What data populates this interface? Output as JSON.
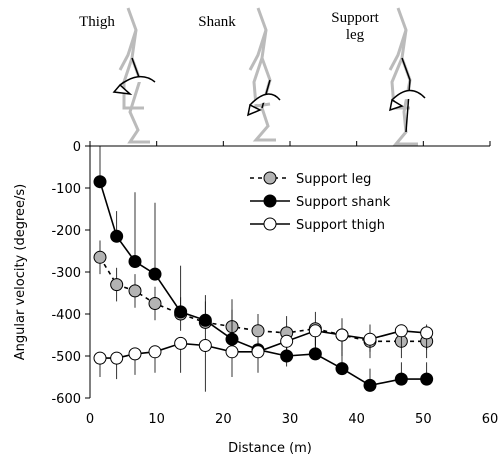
{
  "chart_data": {
    "type": "line",
    "panel_labels": [
      "Thigh",
      "Shank",
      "Support leg"
    ],
    "x_label": "Distance (m)",
    "y_label": "Angular velocity (degree/s)",
    "xlim": [
      0,
      60
    ],
    "xticks": [
      0,
      10,
      20,
      30,
      40,
      50,
      60
    ],
    "ylim": [
      -600,
      0
    ],
    "yticks": [
      0,
      -100,
      -200,
      -300,
      -400,
      -500,
      -600
    ],
    "x": [
      1.5,
      4,
      6.75,
      9.75,
      13.6,
      17.3,
      21.3,
      25.2,
      29.5,
      33.8,
      37.8,
      42,
      46.7,
      50.5
    ],
    "legend": "upper right",
    "series": [
      {
        "name": "Support leg",
        "color": "#b3b3b3",
        "dash": true,
        "error_direction": "both",
        "values": [
          -265,
          -330,
          -345,
          -375,
          -400,
          -420,
          -430,
          -440,
          -445,
          -435,
          -450,
          -465,
          -465,
          -465
        ],
        "errors": [
          40,
          40,
          40,
          40,
          40,
          50,
          40,
          40,
          40,
          40,
          40,
          40,
          40,
          40
        ]
      },
      {
        "name": "Support shank",
        "color": "#000000",
        "dash": false,
        "error_direction": "up",
        "values": [
          -85,
          -215,
          -275,
          -305,
          -395,
          -415,
          -460,
          -485,
          -500,
          -495,
          -530,
          -570,
          -555,
          -555
        ],
        "errors": [
          85,
          60,
          165,
          170,
          110,
          60,
          95,
          20,
          40,
          40,
          40,
          40,
          40,
          40
        ]
      },
      {
        "name": "Support thigh",
        "color": "#ffffff",
        "dash": false,
        "error_direction": "down",
        "values": [
          -505,
          -505,
          -495,
          -490,
          -470,
          -475,
          -490,
          -490,
          -465,
          -440,
          -450,
          -460,
          -440,
          -445
        ],
        "errors": [
          45,
          50,
          50,
          50,
          70,
          110,
          60,
          50,
          60,
          60,
          50,
          30,
          40,
          40
        ]
      }
    ]
  }
}
